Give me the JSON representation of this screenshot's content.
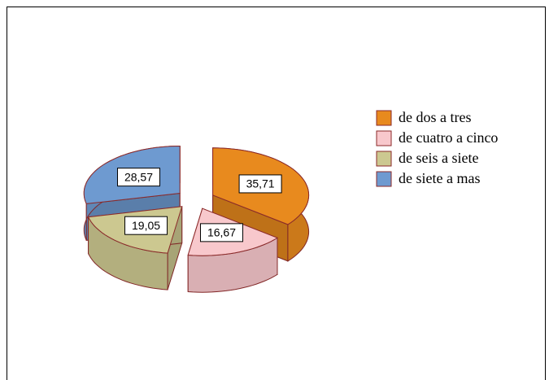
{
  "chart_data": {
    "type": "pie3d",
    "categories": [
      "de dos a tres",
      "de cuatro a cinco",
      "de seis a siete",
      "de siete a mas"
    ],
    "values": [
      35.71,
      16.67,
      19.05,
      28.57
    ],
    "value_labels": [
      "35,71",
      "16,67",
      "19,05",
      "28,57"
    ],
    "colors": [
      "#e88a1e",
      "#f8c8cc",
      "#ccc890",
      "#6e9ad0"
    ],
    "legend": "right"
  }
}
